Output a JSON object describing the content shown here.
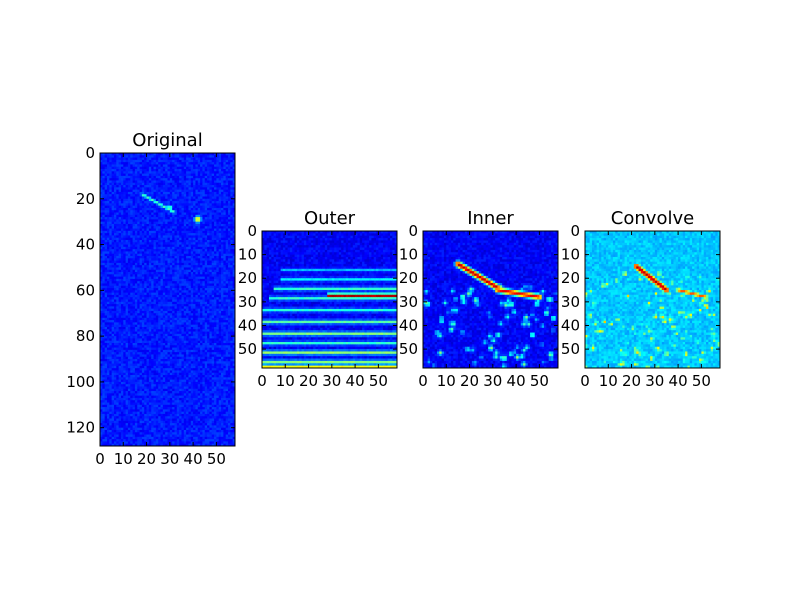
{
  "figure": {
    "background": "#ffffff"
  },
  "chart_data": [
    {
      "type": "heatmap",
      "title": "Original",
      "colormap": "jet",
      "shape": [
        128,
        58
      ],
      "xlim": [
        0,
        58
      ],
      "ylim": [
        128,
        0
      ],
      "xticks": [
        "0",
        "10",
        "20",
        "30",
        "40",
        "50"
      ],
      "yticks": [
        "0",
        "20",
        "40",
        "60",
        "80",
        "100",
        "120"
      ],
      "background_level": 0.15,
      "features": [
        {
          "kind": "streak",
          "from": [
            18,
            18
          ],
          "to": [
            32,
            26
          ],
          "width": 0.8,
          "level": 0.45
        },
        {
          "kind": "blob",
          "at": [
            30,
            24
          ],
          "radius": 1.2,
          "level": 0.55
        },
        {
          "kind": "blob",
          "at": [
            42,
            29
          ],
          "radius": 1.6,
          "level": 0.7
        }
      ]
    },
    {
      "type": "heatmap",
      "title": "Outer",
      "colormap": "jet",
      "shape": [
        58,
        58
      ],
      "xlim": [
        0,
        58
      ],
      "ylim": [
        58,
        0
      ],
      "xticks": [
        "0",
        "10",
        "20",
        "30",
        "40",
        "50"
      ],
      "yticks": [
        "0",
        "10",
        "20",
        "30",
        "40",
        "50"
      ],
      "background_level": 0.12,
      "band_rows": [
        {
          "y": 16,
          "level": 0.3,
          "x_from": 8
        },
        {
          "y": 20,
          "level": 0.36,
          "x_from": 8
        },
        {
          "y": 24,
          "level": 0.42,
          "x_from": 5
        },
        {
          "y": 27,
          "level": 0.95,
          "x_from": 28
        },
        {
          "y": 28,
          "level": 0.42,
          "x_from": 3
        },
        {
          "y": 33,
          "level": 0.4,
          "x_from": 0
        },
        {
          "y": 38,
          "level": 0.46,
          "x_from": 0
        },
        {
          "y": 43,
          "level": 0.5,
          "x_from": 0
        },
        {
          "y": 47,
          "level": 0.42,
          "x_from": 0
        },
        {
          "y": 51,
          "level": 0.52,
          "x_from": 0
        },
        {
          "y": 55,
          "level": 0.5,
          "x_from": 0
        },
        {
          "y": 57,
          "level": 0.62,
          "x_from": 0
        }
      ]
    },
    {
      "type": "heatmap",
      "title": "Inner",
      "colormap": "jet",
      "shape": [
        58,
        58
      ],
      "xlim": [
        0,
        58
      ],
      "ylim": [
        58,
        0
      ],
      "xticks": [
        "0",
        "10",
        "20",
        "30",
        "40",
        "50"
      ],
      "yticks": [
        "0",
        "10",
        "20",
        "30",
        "40",
        "50"
      ],
      "background_level": 0.12,
      "features": [
        {
          "kind": "streak",
          "from": [
            15,
            14
          ],
          "to": [
            32,
            24
          ],
          "width": 1.4,
          "level": 0.95
        },
        {
          "kind": "streak",
          "from": [
            32,
            25
          ],
          "to": [
            50,
            28
          ],
          "width": 1.3,
          "level": 0.9
        }
      ],
      "speckle": {
        "count": 90,
        "y_from": 22,
        "level": 0.55
      }
    },
    {
      "type": "heatmap",
      "title": "Convolve",
      "colormap": "jet",
      "shape": [
        58,
        58
      ],
      "xlim": [
        0,
        58
      ],
      "ylim": [
        58,
        0
      ],
      "xticks": [
        "0",
        "10",
        "20",
        "30",
        "40",
        "50"
      ],
      "yticks": [
        "0",
        "10",
        "20",
        "30",
        "40",
        "50"
      ],
      "background_level": 0.32,
      "features": [
        {
          "kind": "streak",
          "from": [
            22,
            15
          ],
          "to": [
            35,
            25
          ],
          "width": 1.5,
          "level": 0.95
        },
        {
          "kind": "streak",
          "from": [
            40,
            25
          ],
          "to": [
            52,
            28
          ],
          "width": 1.0,
          "level": 0.8
        }
      ],
      "speckle": {
        "count": 150,
        "y_from": 18,
        "level": 0.7
      }
    }
  ]
}
